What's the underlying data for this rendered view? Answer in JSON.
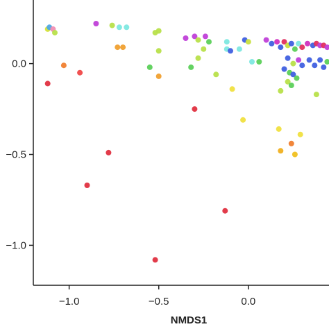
{
  "chart_data": {
    "type": "scatter",
    "title": "",
    "xlabel": "NMDS1",
    "ylabel": "",
    "xlim": [
      -1.2,
      0.45
    ],
    "ylim": [
      -1.22,
      0.35
    ],
    "x_ticks": [
      -1.0,
      -0.5,
      0.0
    ],
    "x_tick_labels": [
      "−1.0",
      "−0.5",
      "0.0"
    ],
    "y_ticks": [
      0.0,
      -0.5,
      -1.0
    ],
    "y_tick_labels": [
      "0.0",
      "−0.5",
      "−1.0"
    ],
    "grid": false,
    "points": [
      {
        "x": -1.12,
        "y": 0.19,
        "color": "#d4e23a"
      },
      {
        "x": -1.11,
        "y": 0.2,
        "color": "#4fa8e6"
      },
      {
        "x": -1.09,
        "y": 0.19,
        "color": "#f08fb3"
      },
      {
        "x": -1.08,
        "y": 0.17,
        "color": "#b8e04a"
      },
      {
        "x": -0.85,
        "y": 0.22,
        "color": "#c040d8"
      },
      {
        "x": -0.76,
        "y": 0.21,
        "color": "#b8e04a"
      },
      {
        "x": -0.72,
        "y": 0.2,
        "color": "#7ee8e0"
      },
      {
        "x": -0.68,
        "y": 0.2,
        "color": "#7ee8e0"
      },
      {
        "x": -0.73,
        "y": 0.09,
        "color": "#f0a030"
      },
      {
        "x": -0.7,
        "y": 0.09,
        "color": "#f0a030"
      },
      {
        "x": -0.52,
        "y": 0.17,
        "color": "#b8e04a"
      },
      {
        "x": -0.5,
        "y": 0.18,
        "color": "#b8e04a"
      },
      {
        "x": -0.5,
        "y": 0.07,
        "color": "#b8e04a"
      },
      {
        "x": -0.55,
        "y": -0.02,
        "color": "#5cd05a"
      },
      {
        "x": -0.5,
        "y": -0.07,
        "color": "#f0a030"
      },
      {
        "x": -1.03,
        "y": -0.01,
        "color": "#f08030"
      },
      {
        "x": -0.94,
        "y": -0.05,
        "color": "#f04848"
      },
      {
        "x": -1.12,
        "y": -0.11,
        "color": "#e03040"
      },
      {
        "x": -0.35,
        "y": 0.14,
        "color": "#c040d8"
      },
      {
        "x": -0.3,
        "y": 0.15,
        "color": "#c040d8"
      },
      {
        "x": -0.28,
        "y": 0.13,
        "color": "#b8e04a"
      },
      {
        "x": -0.24,
        "y": 0.15,
        "color": "#c040d8"
      },
      {
        "x": -0.22,
        "y": 0.12,
        "color": "#5cd05a"
      },
      {
        "x": -0.25,
        "y": 0.08,
        "color": "#b8e04a"
      },
      {
        "x": -0.28,
        "y": 0.03,
        "color": "#b8e04a"
      },
      {
        "x": -0.32,
        "y": -0.02,
        "color": "#5cd05a"
      },
      {
        "x": -0.18,
        "y": -0.06,
        "color": "#b8e04a"
      },
      {
        "x": -0.12,
        "y": 0.12,
        "color": "#7ee8e0"
      },
      {
        "x": -0.12,
        "y": 0.08,
        "color": "#7ee8e0"
      },
      {
        "x": -0.05,
        "y": 0.08,
        "color": "#7ee8e0"
      },
      {
        "x": -0.1,
        "y": 0.07,
        "color": "#4060e0"
      },
      {
        "x": -0.02,
        "y": 0.13,
        "color": "#4060e0"
      },
      {
        "x": 0.0,
        "y": 0.12,
        "color": "#c8e040"
      },
      {
        "x": 0.02,
        "y": 0.01,
        "color": "#7ee8e0"
      },
      {
        "x": 0.06,
        "y": 0.01,
        "color": "#5cd05a"
      },
      {
        "x": 0.1,
        "y": 0.13,
        "color": "#c040d8"
      },
      {
        "x": 0.13,
        "y": 0.11,
        "color": "#4060e0"
      },
      {
        "x": 0.16,
        "y": 0.12,
        "color": "#d030c0"
      },
      {
        "x": 0.18,
        "y": 0.09,
        "color": "#4060e0"
      },
      {
        "x": 0.2,
        "y": 0.12,
        "color": "#e03060"
      },
      {
        "x": 0.22,
        "y": 0.1,
        "color": "#c8e040"
      },
      {
        "x": 0.24,
        "y": 0.11,
        "color": "#4060e0"
      },
      {
        "x": 0.26,
        "y": 0.08,
        "color": "#5cd05a"
      },
      {
        "x": 0.28,
        "y": 0.11,
        "color": "#7ee8e0"
      },
      {
        "x": 0.3,
        "y": 0.09,
        "color": "#e03060"
      },
      {
        "x": 0.33,
        "y": 0.11,
        "color": "#d030c0"
      },
      {
        "x": 0.36,
        "y": 0.1,
        "color": "#4060e0"
      },
      {
        "x": 0.38,
        "y": 0.11,
        "color": "#e03060"
      },
      {
        "x": 0.4,
        "y": 0.1,
        "color": "#c040d8"
      },
      {
        "x": 0.42,
        "y": 0.1,
        "color": "#e03060"
      },
      {
        "x": 0.44,
        "y": 0.09,
        "color": "#c040d8"
      },
      {
        "x": 0.22,
        "y": 0.03,
        "color": "#4060e0"
      },
      {
        "x": 0.25,
        "y": 0.0,
        "color": "#b8e04a"
      },
      {
        "x": 0.28,
        "y": 0.02,
        "color": "#c040d8"
      },
      {
        "x": 0.3,
        "y": -0.01,
        "color": "#4060e0"
      },
      {
        "x": 0.34,
        "y": 0.02,
        "color": "#4060e0"
      },
      {
        "x": 0.37,
        "y": -0.01,
        "color": "#4060e0"
      },
      {
        "x": 0.4,
        "y": 0.02,
        "color": "#4060e0"
      },
      {
        "x": 0.42,
        "y": -0.02,
        "color": "#4060e0"
      },
      {
        "x": 0.44,
        "y": 0.01,
        "color": "#5cd05a"
      },
      {
        "x": 0.2,
        "y": -0.03,
        "color": "#4060e0"
      },
      {
        "x": 0.23,
        "y": -0.05,
        "color": "#5cd05a"
      },
      {
        "x": 0.25,
        "y": -0.06,
        "color": "#4060e0"
      },
      {
        "x": 0.27,
        "y": -0.08,
        "color": "#5cd05a"
      },
      {
        "x": 0.22,
        "y": -0.1,
        "color": "#b8e04a"
      },
      {
        "x": 0.18,
        "y": -0.15,
        "color": "#b8e04a"
      },
      {
        "x": 0.24,
        "y": -0.12,
        "color": "#5cd05a"
      },
      {
        "x": 0.38,
        "y": -0.17,
        "color": "#b8e04a"
      },
      {
        "x": -0.3,
        "y": -0.25,
        "color": "#e03040"
      },
      {
        "x": -0.03,
        "y": -0.31,
        "color": "#f0e040"
      },
      {
        "x": -0.09,
        "y": -0.14,
        "color": "#f0e040"
      },
      {
        "x": 0.17,
        "y": -0.36,
        "color": "#f0e040"
      },
      {
        "x": 0.29,
        "y": -0.39,
        "color": "#f0e040"
      },
      {
        "x": 0.24,
        "y": -0.44,
        "color": "#f08030"
      },
      {
        "x": 0.18,
        "y": -0.48,
        "color": "#f0b020"
      },
      {
        "x": 0.26,
        "y": -0.5,
        "color": "#f0c020"
      },
      {
        "x": -0.78,
        "y": -0.49,
        "color": "#e03040"
      },
      {
        "x": -0.9,
        "y": -0.67,
        "color": "#e03040"
      },
      {
        "x": -0.13,
        "y": -0.81,
        "color": "#e03040"
      },
      {
        "x": -0.52,
        "y": -1.08,
        "color": "#e03040"
      }
    ]
  }
}
